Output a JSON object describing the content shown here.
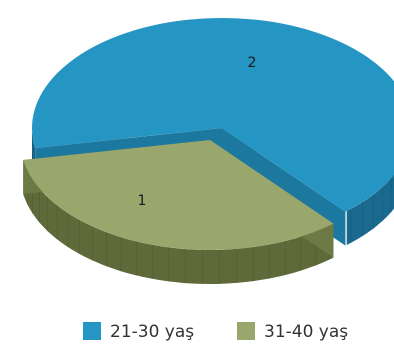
{
  "chart_data": {
    "type": "pie",
    "style": "3d-exploded",
    "title": "",
    "categories": [
      "21-30 yaş",
      "31-40 yaş"
    ],
    "values": [
      2,
      1
    ],
    "data_labels": [
      "2",
      "1"
    ],
    "legend_position": "bottom",
    "colors": {
      "21-30 yaş": "#2596c3",
      "31-40 yaş": "#99a76c"
    }
  },
  "legend": {
    "items": [
      {
        "label": "21-30 yaş",
        "color": "#2596c3"
      },
      {
        "label": "31-40 yaş",
        "color": "#99a76c"
      }
    ]
  }
}
